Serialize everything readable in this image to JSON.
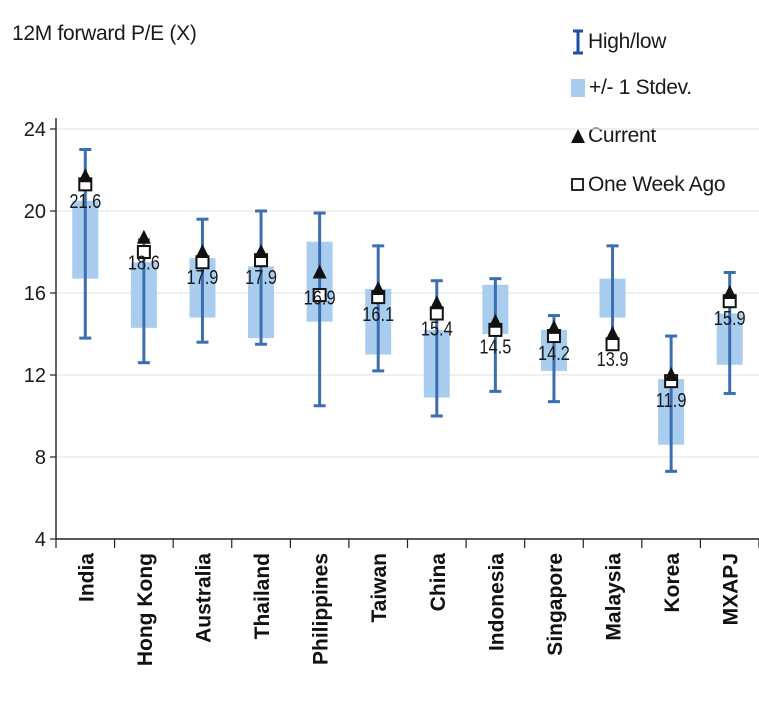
{
  "chart_data": {
    "type": "range",
    "ylabel": "12M forward P/E (X)",
    "ylim": [
      4,
      26
    ],
    "yticks": [
      4,
      8,
      12,
      16,
      20,
      24
    ],
    "grid": true,
    "legend_position": "top-right",
    "legend": {
      "highlow": "High/low",
      "stdev": "+/- 1 Stdev.",
      "current": "Current",
      "week_ago": "One Week Ago"
    },
    "colors": {
      "highlow": "#3d6fb0",
      "stdev": "#a8cdee",
      "marker": "#111111",
      "grid": "#e6e6e6"
    },
    "categories": [
      "India",
      "Hong Kong",
      "Australia",
      "Thailand",
      "Philippines",
      "Taiwan",
      "China",
      "Indonesia",
      "Singapore",
      "Malaysia",
      "Korea",
      "MXAPJ"
    ],
    "high": [
      23.0,
      18.6,
      19.6,
      20.0,
      19.9,
      18.3,
      16.6,
      16.7,
      14.9,
      18.3,
      13.9,
      17.0
    ],
    "low": [
      13.8,
      12.6,
      13.6,
      13.5,
      10.5,
      12.2,
      10.0,
      11.2,
      10.7,
      13.5,
      7.3,
      11.1
    ],
    "stdev_upper": [
      20.5,
      17.5,
      17.7,
      17.3,
      18.5,
      16.2,
      14.2,
      16.4,
      14.2,
      16.7,
      11.8,
      15.0
    ],
    "stdev_lower": [
      16.7,
      14.3,
      14.8,
      13.8,
      14.6,
      13.0,
      10.9,
      14.0,
      12.2,
      14.8,
      8.6,
      12.5
    ],
    "current": [
      21.6,
      18.6,
      17.9,
      17.9,
      16.9,
      16.1,
      15.4,
      14.5,
      14.2,
      13.9,
      11.9,
      15.9
    ],
    "week_ago": [
      21.3,
      18.0,
      17.5,
      17.6,
      15.9,
      15.8,
      15.0,
      14.2,
      13.9,
      13.5,
      11.7,
      15.6
    ],
    "value_labels": [
      "21.6",
      "18.6",
      "17.9",
      "17.9",
      "16.9",
      "16.1",
      "15.4",
      "14.5",
      "14.2",
      "13.9",
      "11.9",
      "15.9"
    ]
  }
}
